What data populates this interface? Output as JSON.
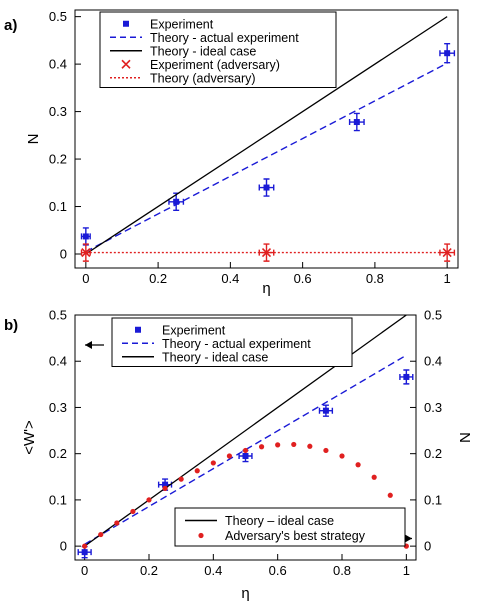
{
  "chart_data": [
    {
      "panel_label": "a)",
      "type": "scatter",
      "xlabel": "η",
      "ylabel": "N",
      "xlim": [
        0,
        1
      ],
      "ylim": [
        0,
        0.5
      ],
      "xticks": [
        "0",
        "0.2",
        "0.4",
        "0.6",
        "0.8",
        "1"
      ],
      "yticks": [
        "0",
        "0.1",
        "0.2",
        "0.3",
        "0.4",
        "0.5"
      ],
      "legend": {
        "placement": "top-left",
        "entries": [
          {
            "label": "Experiment",
            "style": "square",
            "color": "#1a1ad6"
          },
          {
            "label": "Theory - actual experiment",
            "style": "dashed",
            "color": "#1a1ad6"
          },
          {
            "label": "Theory - ideal case",
            "style": "solid",
            "color": "#000000"
          },
          {
            "label": "Experiment (adversary)",
            "style": "cross",
            "color": "#e02020"
          },
          {
            "label": "Theory (adversary)",
            "style": "dotted",
            "color": "#e02020"
          }
        ]
      },
      "series": [
        {
          "name": "Experiment",
          "kind": "errorbar-square",
          "color": "#1a1ad6",
          "x": [
            0,
            0.25,
            0.5,
            0.75,
            1
          ],
          "y": [
            0.037,
            0.11,
            0.14,
            0.278,
            0.423
          ],
          "xerr": [
            0.012,
            0.02,
            0.02,
            0.02,
            0.02
          ],
          "yerr": [
            0.018,
            0.018,
            0.018,
            0.018,
            0.02
          ]
        },
        {
          "name": "Theory - actual experiment",
          "kind": "line-dashed",
          "color": "#1a1ad6",
          "x": [
            0,
            1
          ],
          "y": [
            0.005,
            0.402
          ]
        },
        {
          "name": "Theory - ideal case",
          "kind": "line-solid",
          "color": "#000000",
          "x": [
            0,
            1
          ],
          "y": [
            0,
            0.5
          ]
        },
        {
          "name": "Experiment (adversary)",
          "kind": "errorbar-cross",
          "color": "#e02020",
          "x": [
            0,
            0.5,
            1
          ],
          "y": [
            0.003,
            0.003,
            0.003
          ],
          "xerr": [
            0.012,
            0.02,
            0.02
          ],
          "yerr": [
            0.018,
            0.018,
            0.018
          ]
        },
        {
          "name": "Theory (adversary)",
          "kind": "line-dotted",
          "color": "#e02020",
          "x": [
            0,
            1
          ],
          "y": [
            0.003,
            0.003
          ]
        }
      ]
    },
    {
      "panel_label": "b)",
      "type": "scatter",
      "xlabel": "η",
      "ylabel": "<W'>",
      "ylabel_right": "N",
      "xlim": [
        0,
        1
      ],
      "ylim": [
        -0.03,
        0.5
      ],
      "xticks": [
        "0",
        "0.2",
        "0.4",
        "0.6",
        "0.8",
        "1"
      ],
      "yticks": [
        "0",
        "0.1",
        "0.2",
        "0.3",
        "0.4",
        "0.5"
      ],
      "yticks_right": [
        "0",
        "0.1",
        "0.2",
        "0.3",
        "0.4",
        "0.5"
      ],
      "legend_top": {
        "placement": "top-left",
        "entries": [
          {
            "label": "Experiment",
            "style": "square",
            "color": "#1a1ad6"
          },
          {
            "label": "Theory - actual experiment",
            "style": "dashed",
            "color": "#1a1ad6"
          },
          {
            "label": "Theory - ideal case",
            "style": "solid",
            "color": "#000000"
          }
        ]
      },
      "legend_bottom": {
        "placement": "bottom-right",
        "entries": [
          {
            "label": "Theory – ideal case",
            "style": "solid",
            "color": "#000000"
          },
          {
            "label": "Adversary's best strategy",
            "style": "dot",
            "color": "#e02020"
          }
        ]
      },
      "series": [
        {
          "name": "Experiment",
          "kind": "errorbar-square",
          "color": "#1a1ad6",
          "x": [
            0,
            0.25,
            0.5,
            0.75,
            1
          ],
          "y": [
            -0.013,
            0.133,
            0.195,
            0.293,
            0.366
          ],
          "xerr": [
            0.02,
            0.02,
            0.02,
            0.02,
            0.02
          ],
          "yerr": [
            0.012,
            0.012,
            0.012,
            0.012,
            0.015
          ]
        },
        {
          "name": "Theory - actual experiment",
          "kind": "line-dashed",
          "color": "#1a1ad6",
          "x": [
            0,
            1
          ],
          "y": [
            0.004,
            0.413
          ]
        },
        {
          "name": "Theory - ideal case",
          "kind": "line-solid",
          "color": "#000000",
          "x": [
            0,
            1
          ],
          "y": [
            0,
            0.5
          ]
        },
        {
          "name": "Adversary's best strategy",
          "kind": "dots",
          "color": "#e02020",
          "x": [
            0,
            0.05,
            0.1,
            0.15,
            0.2,
            0.25,
            0.3,
            0.35,
            0.4,
            0.45,
            0.5,
            0.55,
            0.6,
            0.65,
            0.7,
            0.75,
            0.8,
            0.85,
            0.9,
            0.95,
            1
          ],
          "y": [
            0,
            0.025,
            0.05,
            0.075,
            0.1,
            0.125,
            0.145,
            0.163,
            0.18,
            0.195,
            0.207,
            0.215,
            0.219,
            0.22,
            0.216,
            0.207,
            0.195,
            0.176,
            0.149,
            0.11,
            0.0
          ]
        }
      ]
    }
  ]
}
